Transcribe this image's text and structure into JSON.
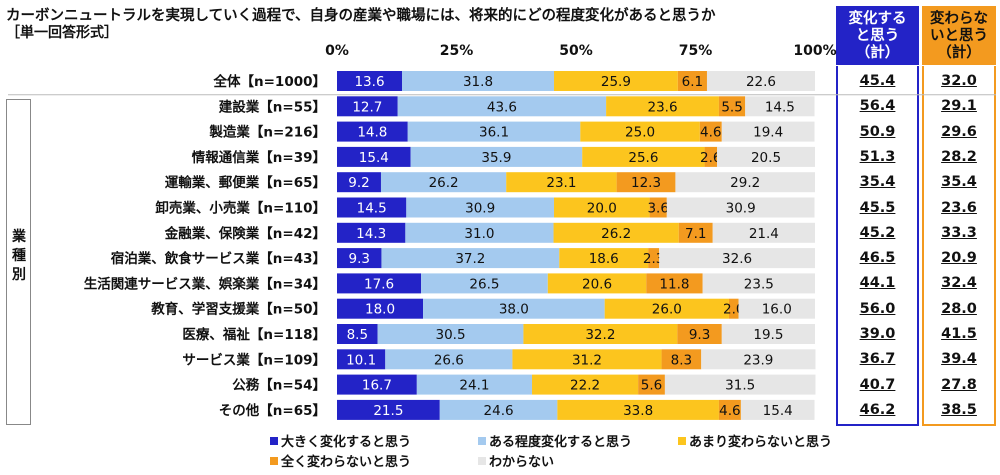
{
  "header": {
    "title": "カーボンニュートラルを実現していく過程で、自身の産業や職場には、将来的にどの程度変化があると思うか",
    "subtitle": "［単一回答形式］",
    "sum_change_label": [
      "変化する",
      "と思う",
      "（計）"
    ],
    "sum_nochange_label": [
      "変わらな",
      "いと思う",
      "（計）"
    ],
    "side_label": [
      "業",
      "種",
      "別"
    ]
  },
  "chart_data": {
    "type": "bar",
    "orientation": "horizontal",
    "stacked": true,
    "percent": true,
    "xlim": [
      0,
      100
    ],
    "tick_labels": [
      "0%",
      "25%",
      "50%",
      "75%",
      "100%"
    ],
    "categories": [
      "全体【n=1000】",
      "建設業【n=55】",
      "製造業【n=216】",
      "情報通信業【n=39】",
      "運輸業、郵便業【n=65】",
      "卸売業、小売業【n=110】",
      "金融業、保険業【n=42】",
      "宿泊業、飲食サービス業【n=43】",
      "生活関連サービス業、娯楽業【n=34】",
      "教育、学習支援業【n=50】",
      "医療、福祉【n=118】",
      "サービス業【n=109】",
      "公務【n=54】",
      "その他【n=65】"
    ],
    "series": [
      {
        "name": "大きく変化すると思う",
        "color": "#2323c7",
        "label_color": "#ffffff",
        "values": [
          13.6,
          12.7,
          14.8,
          15.4,
          9.2,
          14.5,
          14.3,
          9.3,
          17.6,
          18.0,
          8.5,
          10.1,
          16.7,
          21.5
        ]
      },
      {
        "name": "ある程度変化すると思う",
        "color": "#a4caef",
        "label_color": "#111111",
        "values": [
          31.8,
          43.6,
          36.1,
          35.9,
          26.2,
          30.9,
          31.0,
          37.2,
          26.5,
          38.0,
          30.5,
          26.6,
          24.1,
          24.6
        ]
      },
      {
        "name": "あまり変わらないと思う",
        "color": "#fcc51e",
        "label_color": "#111111",
        "values": [
          25.9,
          23.6,
          25.0,
          25.6,
          23.1,
          20.0,
          26.2,
          18.6,
          20.6,
          26.0,
          32.2,
          31.2,
          22.2,
          33.8
        ]
      },
      {
        "name": "全く変わらないと思う",
        "color": "#f39a1f",
        "label_color": "#111111",
        "values": [
          6.1,
          5.5,
          4.6,
          2.6,
          12.3,
          3.6,
          7.1,
          2.3,
          11.8,
          2.0,
          9.3,
          8.3,
          5.6,
          4.6
        ]
      },
      {
        "name": "わからない",
        "color": "#e6e6e6",
        "label_color": "#111111",
        "values": [
          22.6,
          14.5,
          19.4,
          20.5,
          29.2,
          30.9,
          21.4,
          32.6,
          23.5,
          16.0,
          19.5,
          23.9,
          31.5,
          15.4
        ]
      }
    ],
    "sum_change": [
      "45.4",
      "56.4",
      "50.9",
      "51.3",
      "35.4",
      "45.5",
      "45.2",
      "46.5",
      "44.1",
      "56.0",
      "39.0",
      "36.7",
      "40.7",
      "46.2"
    ],
    "sum_nochange": [
      "32.0",
      "29.1",
      "29.6",
      "28.2",
      "35.4",
      "23.6",
      "33.3",
      "20.9",
      "32.4",
      "28.0",
      "41.5",
      "39.4",
      "27.8",
      "38.5"
    ],
    "legend_position": "bottom"
  }
}
